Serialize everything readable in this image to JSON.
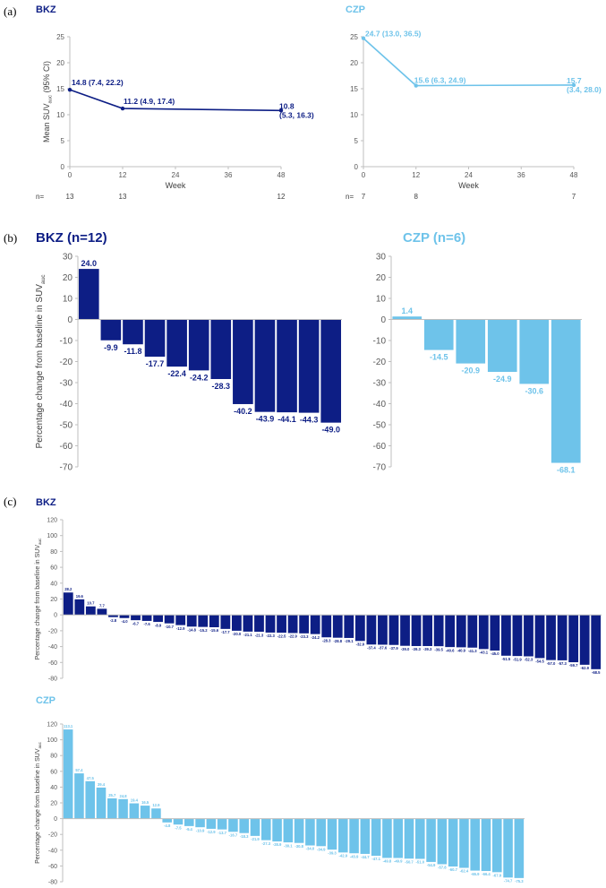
{
  "colors": {
    "bkz": "#0d1e85",
    "czp": "#6ec3ea",
    "axis": "#bfbfbf",
    "tick": "#595959"
  },
  "panels": {
    "a": "(a)",
    "b": "(b)",
    "c": "(c)"
  },
  "n_prefix": "n=",
  "chart_data": [
    {
      "panel": "a",
      "type": "line",
      "title": "BKZ",
      "color": "#0d1e85",
      "xlabel": "Week",
      "ylabel": "Mean SUVauc (95% CI)",
      "xlim": [
        0,
        48
      ],
      "ylim": [
        0,
        25
      ],
      "xticks": [
        0,
        12,
        24,
        36,
        48
      ],
      "yticks": [
        0,
        5,
        10,
        15,
        20,
        25
      ],
      "x": [
        0,
        12,
        48
      ],
      "y": [
        14.8,
        11.2,
        10.8
      ],
      "labels": [
        [
          "14.8 (7.4, 22.2)"
        ],
        [
          "11.2 (4.9, 17.4)"
        ],
        [
          "10.8",
          "(5.3, 16.3)"
        ]
      ],
      "n_values": [
        "13",
        "13",
        "12"
      ]
    },
    {
      "panel": "a",
      "type": "line",
      "title": "CZP",
      "color": "#6ec3ea",
      "xlabel": "Week",
      "ylabel": "",
      "xlim": [
        0,
        48
      ],
      "ylim": [
        0,
        25
      ],
      "xticks": [
        0,
        12,
        24,
        36,
        48
      ],
      "yticks": [
        0,
        5,
        10,
        15,
        20,
        25
      ],
      "x": [
        0,
        12,
        48
      ],
      "y": [
        24.7,
        15.6,
        15.7
      ],
      "labels": [
        [
          "24.7 (13.0, 36.5)"
        ],
        [
          "15.6 (6.3, 24.9)"
        ],
        [
          "15.7",
          "(3.4, 28.0)"
        ]
      ],
      "n_values": [
        "7",
        "8",
        "7"
      ]
    },
    {
      "panel": "b",
      "type": "bar",
      "title": "BKZ (n=12)",
      "color": "#0d1e85",
      "ylabel": "Percentage change from baseline in SUVauc",
      "ylim": [
        -70,
        30
      ],
      "yticks": [
        30,
        20,
        10,
        0,
        -10,
        -20,
        -30,
        -40,
        -50,
        -60,
        -70
      ],
      "values": [
        24.0,
        -9.9,
        -11.8,
        -17.7,
        -22.4,
        -24.2,
        -28.3,
        -40.2,
        -43.9,
        -44.1,
        -44.3,
        -49.0
      ],
      "value_labels": [
        "24.0",
        "-9.9",
        "-11.8",
        "-17.7",
        "-22.4",
        "-24.2",
        "-28.3",
        "-40.2",
        "-43.9",
        "-44.1",
        "-44.3",
        "-49.0"
      ]
    },
    {
      "panel": "b",
      "type": "bar",
      "title": "CZP (n=6)",
      "color": "#6ec3ea",
      "ylabel": "",
      "ylim": [
        -70,
        30
      ],
      "yticks": [
        30,
        20,
        10,
        0,
        -10,
        -20,
        -30,
        -40,
        -50,
        -60,
        -70
      ],
      "values": [
        1.4,
        -14.5,
        -20.9,
        -24.9,
        -30.6,
        -68.1
      ],
      "value_labels": [
        "1.4",
        "-14.5",
        "-20.9",
        "-24.9",
        "-30.6",
        "-68.1"
      ]
    },
    {
      "panel": "c",
      "type": "bar",
      "title": "BKZ",
      "color": "#0d1e85",
      "ylabel": "Percentage change from baseline in SUVauc",
      "ylim": [
        -80,
        120
      ],
      "yticks": [
        120,
        100,
        80,
        60,
        40,
        20,
        0,
        -20,
        -40,
        -60,
        -80
      ],
      "values": [
        28.2,
        19.6,
        10.7,
        7.7,
        -2.8,
        -4.0,
        -6.7,
        -7.6,
        -8.9,
        -10.7,
        -12.9,
        -14.8,
        -15.2,
        -15.6,
        -17.7,
        -20.0,
        -21.1,
        -21.3,
        -22.3,
        -22.5,
        -22.9,
        -23.3,
        -24.2,
        -28.3,
        -28.8,
        -29.1,
        -32.9,
        -37.4,
        -37.6,
        -37.9,
        -39.0,
        -39.3,
        -39.3,
        -39.5,
        -40.6,
        -40.9,
        -41.3,
        -43.1,
        -45.0,
        -51.5,
        -51.9,
        -52.3,
        -54.5,
        -57.0,
        -57.3,
        -59.7,
        -62.9,
        -68.5
      ],
      "value_labels": [
        "28.2",
        "19.6",
        "10.7",
        "7.7",
        "-2.8",
        "-4.0",
        "-6.7",
        "-7.6",
        "-8.9",
        "-10.7",
        "-12.9",
        "-14.8",
        "-15.2",
        "-15.6",
        "-17.7",
        "-20.0",
        "-21.1",
        "-21.3",
        "-22.3",
        "-22.5",
        "-22.9",
        "-23.3",
        "-24.2",
        "-28.3",
        "-28.8",
        "-29.1",
        "-32.9",
        "-37.4",
        "-37.6",
        "-37.9",
        "-39.0",
        "-39.3",
        "-39.3",
        "-39.5",
        "-40.6",
        "-40.9",
        "-41.3",
        "-43.1",
        "-45.0",
        "-51.5",
        "-51.9",
        "-52.3",
        "-54.5",
        "-57.0",
        "-57.3",
        "-59.7",
        "-62.9",
        "-68.5"
      ]
    },
    {
      "panel": "c",
      "type": "bar",
      "title": "CZP",
      "color": "#6ec3ea",
      "ylabel": "Percentage change from baseline in SUVauc",
      "ylim": [
        -80,
        120
      ],
      "yticks": [
        120,
        100,
        80,
        60,
        40,
        20,
        0,
        -20,
        -40,
        -60,
        -80
      ],
      "values": [
        113.1,
        57.4,
        47.5,
        39.4,
        25.7,
        24.8,
        19.4,
        16.5,
        12.9,
        -4.8,
        -7.5,
        -9.4,
        -10.9,
        -12.9,
        -13.7,
        -16.7,
        -18.3,
        -21.9,
        -27.3,
        -28.9,
        -30.1,
        -30.8,
        -34.0,
        -34.9,
        -39.3,
        -42.9,
        -43.9,
        -44.7,
        -47.1,
        -49.8,
        -49.9,
        -50.7,
        -51.0,
        -54.9,
        -57.8,
        -60.7,
        -62.4,
        -65.9,
        -66.4,
        -67.9,
        -74.7,
        -75.3
      ],
      "value_labels": [
        "113.1",
        "57.4",
        "47.5",
        "39.4",
        "25.7",
        "24.8",
        "19.4",
        "16.5",
        "12.9",
        "-4.8",
        "-7.5",
        "-9.4",
        "-10.9",
        "-12.9",
        "-13.7",
        "-16.7",
        "-18.3",
        "-21.9",
        "-27.3",
        "-28.9",
        "-30.1",
        "-30.8",
        "-34.0",
        "-34.9",
        "-39.3",
        "-42.9",
        "-43.9",
        "-44.7",
        "-47.1",
        "-49.8",
        "-49.9",
        "-50.7",
        "-51.0",
        "-54.9",
        "-57.8",
        "-60.7",
        "-62.4",
        "-65.9",
        "-66.4",
        "-67.9",
        "-74.7",
        "-75.3"
      ]
    }
  ]
}
